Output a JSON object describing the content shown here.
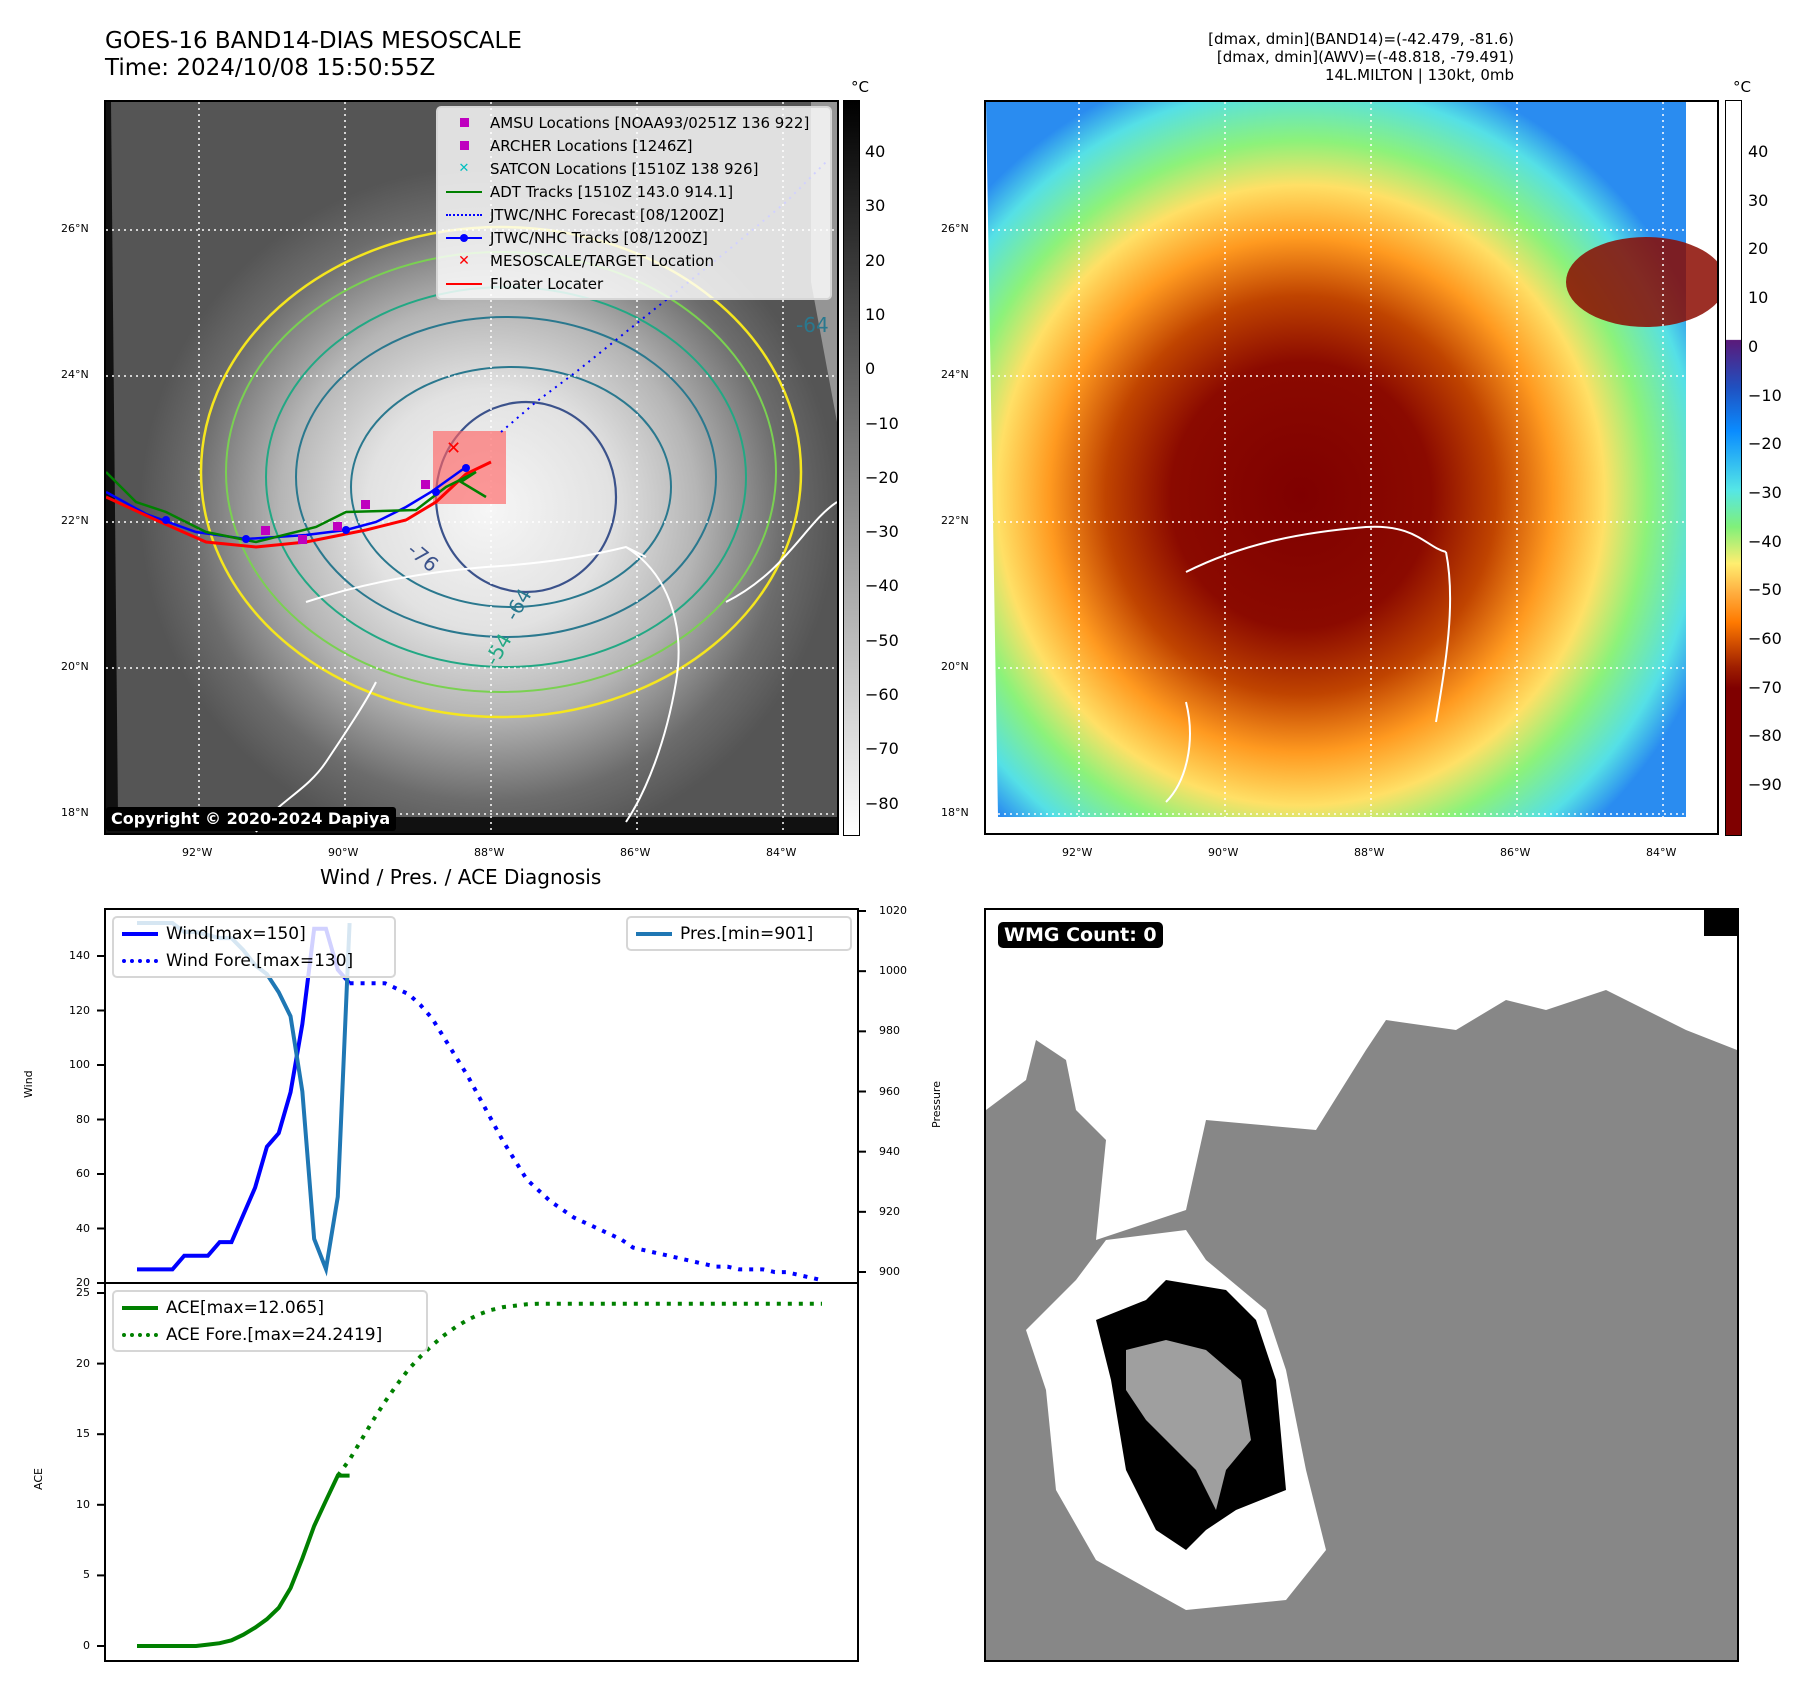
{
  "header": {
    "title_line1": "GOES-16 BAND14-DIAS MESOSCALE",
    "title_line2": "Time: 2024/10/08 15:50:55Z",
    "stats_line1": "[dmax, dmin](BAND14)=(-42.479, -81.6)",
    "stats_line2": "[dmax, dmin](AWV)=(-48.818, -79.491)",
    "stats_line3": "14L.MILTON | 130kt, 0mb"
  },
  "map_left": {
    "lat_ticks": [
      "26°N",
      "24°N",
      "22°N",
      "20°N",
      "18°N"
    ],
    "lon_ticks": [
      "92°W",
      "90°W",
      "88°W",
      "86°W",
      "84°W"
    ],
    "colorbar_unit": "°C",
    "colorbar_ticks": [
      "40",
      "30",
      "20",
      "10",
      "0",
      "−10",
      "−20",
      "−30",
      "−40",
      "−50",
      "−60",
      "−70",
      "−80"
    ],
    "contour_labels": [
      "-76",
      "-64",
      "-64",
      "-54"
    ],
    "copyright": "Copyright © 2020-2024 Dapiya",
    "legend": [
      {
        "label": "AMSU Locations [NOAA93/0251Z 136 922]",
        "icon": "square-marker",
        "color": "#bf00bf"
      },
      {
        "label": "ARCHER Locations [1246Z]",
        "icon": "square-marker",
        "color": "#bf00bf"
      },
      {
        "label": "SATCON Locations [1510Z 138 926]",
        "icon": "x-marker",
        "color": "#00bfbf"
      },
      {
        "label": "ADT Tracks [1510Z 143.0 914.1]",
        "icon": "solid-line",
        "color": "#008000"
      },
      {
        "label": "JTWC/NHC Forecast [08/1200Z]",
        "icon": "dotted-line",
        "color": "#0000ff"
      },
      {
        "label": "JTWC/NHC Tracks [08/1200Z]",
        "icon": "line-dot",
        "color": "#0000ff"
      },
      {
        "label": "MESOSCALE/TARGET Location",
        "icon": "x-marker",
        "color": "#ff0000"
      },
      {
        "label": "Floater Locater",
        "icon": "solid-line",
        "color": "#ff0000"
      }
    ]
  },
  "map_right": {
    "lat_ticks": [
      "26°N",
      "24°N",
      "22°N",
      "20°N",
      "18°N"
    ],
    "lon_ticks": [
      "92°W",
      "90°W",
      "88°W",
      "86°W",
      "84°W"
    ],
    "colorbar_unit": "°C",
    "colorbar_ticks": [
      "40",
      "30",
      "20",
      "10",
      "0",
      "−10",
      "−20",
      "−30",
      "−40",
      "−50",
      "−60",
      "−70",
      "−80",
      "−90"
    ]
  },
  "diagnosis": {
    "title": "Wind / Pres. / ACE Diagnosis",
    "wind_ylabel": "Wind",
    "pressure_ylabel": "Pressure",
    "ace_ylabel": "ACE",
    "wind_ticks": [
      "140",
      "120",
      "100",
      "80",
      "60",
      "40",
      "20"
    ],
    "pressure_ticks": [
      "1020",
      "1000",
      "980",
      "960",
      "940",
      "920",
      "900"
    ],
    "ace_ticks": [
      "25",
      "20",
      "15",
      "10",
      "5",
      "0"
    ],
    "legend_wind": "Wind[max=150]",
    "legend_wind_fore": "Wind Fore.[max=130]",
    "legend_pres": "Pres.[min=901]",
    "legend_ace": "ACE[max=12.065]",
    "legend_ace_fore": "ACE Fore.[max=24.2419]"
  },
  "wmg": {
    "badge": "WMG Count: 0"
  },
  "chart_data": [
    {
      "type": "line",
      "title": "Wind / Pres. / ACE Diagnosis",
      "ylabel": "Wind",
      "ylim": [
        19,
        156
      ],
      "x": [
        0,
        1,
        2,
        3,
        4,
        5,
        6,
        7,
        8,
        9,
        10,
        11,
        12,
        13,
        14,
        15,
        16,
        17
      ],
      "series": [
        {
          "name": "Wind[max=150]",
          "color": "#0000ff",
          "style": "solid",
          "x": [
            0,
            1,
            2,
            3,
            4,
            5,
            6,
            7,
            8,
            9,
            10,
            11,
            12,
            13,
            14,
            15,
            16,
            17,
            18
          ],
          "values": [
            25,
            25,
            25,
            25,
            30,
            30,
            30,
            35,
            35,
            45,
            55,
            70,
            75,
            90,
            115,
            150,
            150,
            135,
            130
          ]
        },
        {
          "name": "Wind Fore.[max=130]",
          "color": "#0000ff",
          "style": "dotted",
          "x": [
            18,
            19,
            20,
            21,
            22,
            23,
            24,
            25,
            26,
            27,
            28,
            29,
            30,
            31,
            32,
            33,
            34,
            35,
            36,
            37,
            38,
            39,
            40,
            41,
            42,
            43,
            44,
            45,
            46,
            47,
            48,
            49,
            50,
            51,
            52,
            53,
            54,
            55,
            56,
            57,
            58
          ],
          "values": [
            130,
            130,
            130,
            130,
            128,
            126,
            122,
            117,
            110,
            103,
            96,
            88,
            80,
            72,
            65,
            58,
            54,
            50,
            47,
            44,
            42,
            40,
            38,
            36,
            33,
            32,
            31,
            30,
            29,
            28,
            27,
            26,
            26,
            25,
            25,
            25,
            24,
            24,
            23,
            22,
            21
          ]
        }
      ]
    },
    {
      "type": "line",
      "ylabel": "Pressure",
      "ylim": [
        898,
        1020
      ],
      "series": [
        {
          "name": "Pres.[min=901]",
          "color": "#1f77b4",
          "style": "solid",
          "x": [
            0,
            1,
            2,
            3,
            4,
            5,
            6,
            7,
            8,
            9,
            10,
            11,
            12,
            13,
            14,
            15,
            16,
            17,
            18
          ],
          "values": [
            1016,
            1016,
            1016,
            1016,
            1013,
            1013,
            1012,
            1011,
            1011,
            1007,
            1002,
            999,
            993,
            985,
            960,
            911,
            901,
            925,
            1016
          ]
        }
      ]
    },
    {
      "type": "line",
      "ylabel": "ACE",
      "ylim": [
        -1.2,
        25.2
      ],
      "series": [
        {
          "name": "ACE[max=12.065]",
          "color": "#008000",
          "style": "solid",
          "x": [
            0,
            1,
            2,
            3,
            4,
            5,
            6,
            7,
            8,
            9,
            10,
            11,
            12,
            13,
            14,
            15,
            16,
            17,
            18
          ],
          "values": [
            0,
            0,
            0,
            0,
            0,
            0,
            0.1,
            0.2,
            0.4,
            0.8,
            1.3,
            1.9,
            2.7,
            4.1,
            6.2,
            8.5,
            10.3,
            12.065,
            12.065
          ]
        },
        {
          "name": "ACE Fore.[max=24.2419]",
          "color": "#008000",
          "style": "dotted",
          "x": [
            17,
            18,
            19,
            20,
            21,
            22,
            23,
            24,
            25,
            26,
            27,
            28,
            29,
            30,
            31,
            32,
            33,
            34,
            35,
            36,
            37,
            38,
            39,
            40,
            41,
            42,
            43,
            44,
            45,
            46,
            47,
            48,
            49,
            50,
            51,
            52,
            53,
            54,
            55,
            56,
            57,
            58
          ],
          "values": [
            12.065,
            13.2,
            14.6,
            16,
            17.3,
            18.5,
            19.6,
            20.5,
            21.3,
            22,
            22.6,
            23.1,
            23.5,
            23.8,
            24.0,
            24.1,
            24.2,
            24.2419,
            24.2419,
            24.2419,
            24.2419,
            24.2419,
            24.2419,
            24.2419,
            24.2419,
            24.2419,
            24.2419,
            24.2419,
            24.2419,
            24.2419,
            24.2419,
            24.2419,
            24.2419,
            24.2419,
            24.2419,
            24.2419,
            24.2419,
            24.2419,
            24.2419,
            24.2419,
            24.2419,
            24.2419
          ]
        }
      ]
    }
  ]
}
